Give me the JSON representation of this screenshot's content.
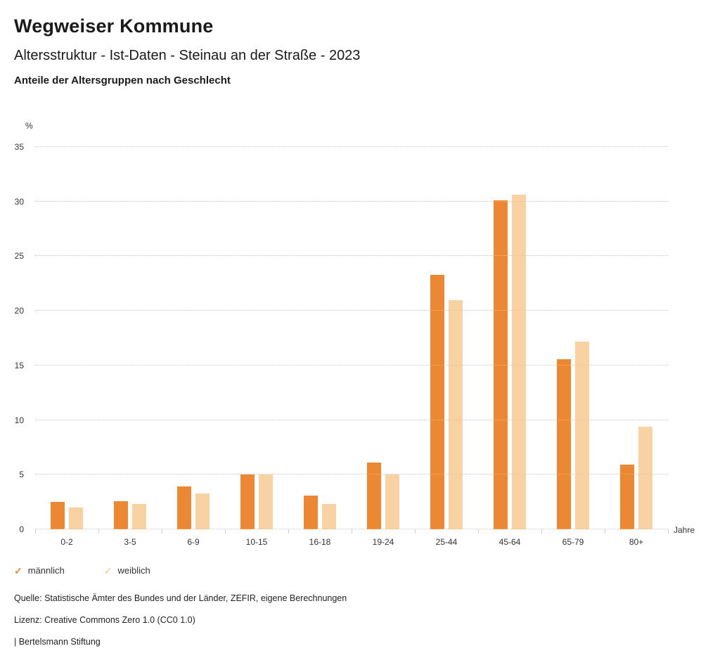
{
  "header": {
    "title": "Wegweiser Kommune",
    "subtitle": "Altersstruktur - Ist-Daten - Steinau an der Straße - 2023",
    "subtitle2": "Anteile der Altersgruppen nach Geschlecht"
  },
  "chart_data": {
    "type": "bar",
    "title": "Anteile der Altersgruppen nach Geschlecht",
    "categories": [
      "0-2",
      "3-5",
      "6-9",
      "10-15",
      "16-18",
      "19-24",
      "25-44",
      "45-64",
      "65-79",
      "80+"
    ],
    "series": [
      {
        "name": "männlich",
        "color": "#EC8733",
        "values": [
          2.5,
          2.6,
          3.9,
          5.0,
          3.1,
          6.1,
          23.3,
          30.1,
          15.6,
          5.9
        ]
      },
      {
        "name": "weiblich",
        "color": "#F8D2A3",
        "values": [
          2.0,
          2.3,
          3.3,
          5.0,
          2.3,
          5.0,
          21.0,
          30.6,
          17.2,
          9.4
        ]
      }
    ],
    "xlabel": "Jahre",
    "ylabel": "%",
    "ylim": [
      0,
      35
    ],
    "yticks": [
      0,
      5,
      10,
      15,
      20,
      25,
      30,
      35
    ],
    "grid": true,
    "gridline_color": "#c9c9c9",
    "legend_position": "bottom",
    "legend_marker": "✓"
  },
  "footer": {
    "source": "Quelle: Statistische Ämter des Bundes und der Länder, ZEFIR, eigene Berechnungen",
    "license": "Lizenz: Creative Commons Zero 1.0 (CC0 1.0)",
    "brand": "| Bertelsmann Stiftung"
  }
}
